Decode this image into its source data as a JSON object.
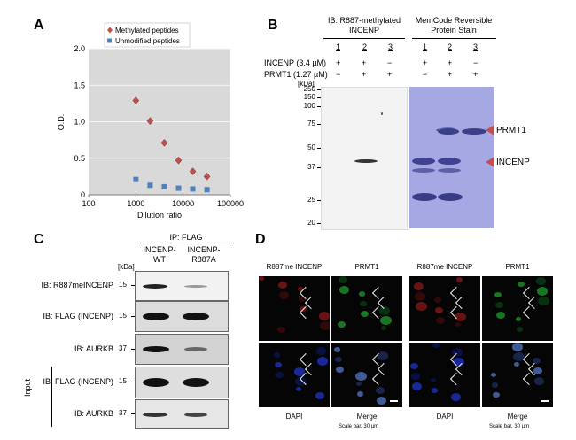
{
  "panels": {
    "a": {
      "label": "A",
      "chart_data": {
        "type": "scatter",
        "title": "",
        "xlabel": "Dilution ratio",
        "ylabel": "O.D.",
        "xscale": "log",
        "xlim": [
          100,
          100000
        ],
        "ylim": [
          0,
          2.0
        ],
        "xticks": [
          "100",
          "1000",
          "10000",
          "100000"
        ],
        "yticks": [
          "0",
          "0.5",
          "1.0",
          "1.5",
          "2.0"
        ],
        "legend_position": "top",
        "series": [
          {
            "name": "Methylated peptides",
            "marker": "diamond",
            "color": "#c0504d",
            "x": [
              1000,
              2000,
              4000,
              8000,
              16000,
              32000
            ],
            "y": [
              1.29,
              1.01,
              0.71,
              0.47,
              0.32,
              0.25
            ]
          },
          {
            "name": "Unmodified peptides",
            "marker": "square",
            "color": "#4f81bd",
            "x": [
              1000,
              2000,
              4000,
              8000,
              16000,
              32000
            ],
            "y": [
              0.21,
              0.13,
              0.11,
              0.09,
              0.08,
              0.07
            ]
          }
        ]
      }
    },
    "b": {
      "label": "B",
      "ib_title": "IB: R887-methylated INCENP",
      "stain_title": "MemCode Reversible Protein Stain",
      "lanes": [
        "1",
        "2",
        "3"
      ],
      "row1_label": "INCENP (3.4 µM)",
      "row2_label": "PRMT1 (1.27 µM)",
      "row1_signs": [
        "+",
        "+",
        "−"
      ],
      "row2_signs": [
        "−",
        "+",
        "+"
      ],
      "kda_label": "[kDa]",
      "markers": [
        "250",
        "150",
        "100",
        "75",
        "50",
        "37",
        "25",
        "20"
      ],
      "arrow_labels": [
        "PRMT1",
        "INCENP"
      ]
    },
    "c": {
      "label": "C",
      "ip_title": "IP: FLAG",
      "col1": "INCENP-WT",
      "col2": "INCENP-R887A",
      "kda_label": "[kDa]",
      "rows": [
        {
          "label": "IB: R887meINCENP",
          "marker": "15"
        },
        {
          "label": "IB: FLAG (INCENP)",
          "marker": "15"
        },
        {
          "label": "IB: AURKB",
          "marker": "37"
        },
        {
          "label": "IB: FLAG (INCENP)",
          "marker": "15"
        },
        {
          "label": "IB: AURKB",
          "marker": "37"
        }
      ],
      "input_label": "Input"
    },
    "d": {
      "label": "D",
      "top_labels": [
        "R887me INCENP",
        "PRMT1",
        "R887me INCENP",
        "PRMT1"
      ],
      "bottom_labels": [
        "DAPI",
        "Merge",
        "DAPI",
        "Merge"
      ],
      "scale_bar": "Scale bar, 30 µm"
    }
  }
}
